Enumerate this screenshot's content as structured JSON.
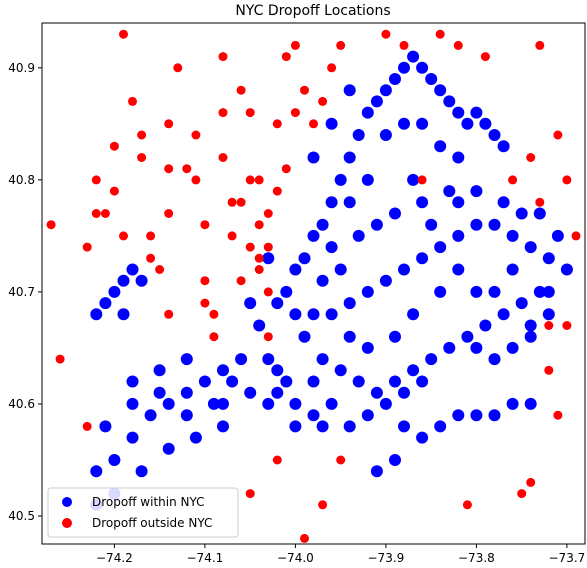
{
  "chart_data": {
    "type": "scatter",
    "title": "NYC Dropoff Locations",
    "xlabel": "",
    "ylabel": "",
    "xlim": [
      -74.28,
      -73.68
    ],
    "ylim": [
      40.475,
      40.94
    ],
    "xticks": [
      -74.2,
      -74.1,
      -74.0,
      -73.9,
      -73.8,
      -73.7
    ],
    "xtick_labels": [
      "−74.2",
      "−74.1",
      "−74.0",
      "−73.9",
      "−73.8",
      "−73.7"
    ],
    "yticks": [
      40.5,
      40.6,
      40.7,
      40.8,
      40.9
    ],
    "ytick_labels": [
      "40.5",
      "40.6",
      "40.7",
      "40.8",
      "40.9"
    ],
    "grid": false,
    "legend_position": "lower-left",
    "series": [
      {
        "name": "Dropoff within NYC",
        "color": "#0000ff",
        "points": [
          [
            -73.99,
            40.73
          ],
          [
            -73.98,
            40.75
          ],
          [
            -73.97,
            40.76
          ],
          [
            -73.96,
            40.78
          ],
          [
            -73.95,
            40.8
          ],
          [
            -73.94,
            40.82
          ],
          [
            -73.93,
            40.84
          ],
          [
            -73.92,
            40.86
          ],
          [
            -73.91,
            40.87
          ],
          [
            -73.9,
            40.88
          ],
          [
            -73.89,
            40.89
          ],
          [
            -73.88,
            40.9
          ],
          [
            -73.87,
            40.91
          ],
          [
            -73.86,
            40.9
          ],
          [
            -73.85,
            40.89
          ],
          [
            -73.84,
            40.88
          ],
          [
            -73.83,
            40.87
          ],
          [
            -73.82,
            40.86
          ],
          [
            -73.81,
            40.85
          ],
          [
            -73.8,
            40.86
          ],
          [
            -73.79,
            40.85
          ],
          [
            -73.78,
            40.84
          ],
          [
            -73.77,
            40.83
          ],
          [
            -73.86,
            40.85
          ],
          [
            -73.88,
            40.85
          ],
          [
            -73.9,
            40.84
          ],
          [
            -73.84,
            40.83
          ],
          [
            -73.82,
            40.82
          ],
          [
            -73.92,
            40.8
          ],
          [
            -73.94,
            40.78
          ],
          [
            -73.96,
            40.74
          ],
          [
            -74.0,
            40.72
          ],
          [
            -74.01,
            40.7
          ],
          [
            -74.0,
            40.68
          ],
          [
            -73.98,
            40.68
          ],
          [
            -73.96,
            40.68
          ],
          [
            -73.94,
            40.69
          ],
          [
            -73.92,
            40.7
          ],
          [
            -73.9,
            40.71
          ],
          [
            -73.88,
            40.72
          ],
          [
            -73.86,
            40.73
          ],
          [
            -73.84,
            40.74
          ],
          [
            -73.82,
            40.75
          ],
          [
            -73.8,
            40.76
          ],
          [
            -73.78,
            40.76
          ],
          [
            -73.76,
            40.75
          ],
          [
            -73.74,
            40.74
          ],
          [
            -73.72,
            40.73
          ],
          [
            -73.71,
            40.75
          ],
          [
            -73.73,
            40.77
          ],
          [
            -73.75,
            40.77
          ],
          [
            -73.77,
            40.78
          ],
          [
            -73.8,
            40.79
          ],
          [
            -73.83,
            40.79
          ],
          [
            -73.86,
            40.78
          ],
          [
            -73.89,
            40.77
          ],
          [
            -73.91,
            40.76
          ],
          [
            -73.93,
            40.75
          ],
          [
            -73.95,
            40.72
          ],
          [
            -73.97,
            40.71
          ],
          [
            -73.99,
            40.66
          ],
          [
            -73.97,
            40.64
          ],
          [
            -73.95,
            40.63
          ],
          [
            -73.93,
            40.62
          ],
          [
            -73.91,
            40.61
          ],
          [
            -73.89,
            40.62
          ],
          [
            -73.87,
            40.63
          ],
          [
            -73.85,
            40.64
          ],
          [
            -73.83,
            40.65
          ],
          [
            -73.81,
            40.66
          ],
          [
            -73.79,
            40.67
          ],
          [
            -73.77,
            40.68
          ],
          [
            -73.75,
            40.69
          ],
          [
            -73.73,
            40.7
          ],
          [
            -73.72,
            40.68
          ],
          [
            -73.74,
            40.66
          ],
          [
            -73.76,
            40.65
          ],
          [
            -73.78,
            40.64
          ],
          [
            -73.8,
            40.65
          ],
          [
            -73.96,
            40.6
          ],
          [
            -73.98,
            40.59
          ],
          [
            -74.0,
            40.6
          ],
          [
            -74.01,
            40.62
          ],
          [
            -74.02,
            40.63
          ],
          [
            -74.03,
            40.64
          ],
          [
            -74.02,
            40.61
          ],
          [
            -74.0,
            40.58
          ],
          [
            -73.97,
            40.58
          ],
          [
            -73.94,
            40.58
          ],
          [
            -73.92,
            40.59
          ],
          [
            -73.9,
            40.6
          ],
          [
            -73.88,
            40.61
          ],
          [
            -73.86,
            40.62
          ],
          [
            -73.82,
            40.59
          ],
          [
            -73.8,
            40.59
          ],
          [
            -73.78,
            40.59
          ],
          [
            -73.76,
            40.6
          ],
          [
            -73.74,
            40.6
          ],
          [
            -73.84,
            40.58
          ],
          [
            -73.86,
            40.57
          ],
          [
            -74.06,
            40.64
          ],
          [
            -74.08,
            40.63
          ],
          [
            -74.1,
            40.62
          ],
          [
            -74.12,
            40.61
          ],
          [
            -74.14,
            40.6
          ],
          [
            -74.16,
            40.59
          ],
          [
            -74.18,
            40.57
          ],
          [
            -74.2,
            40.55
          ],
          [
            -74.22,
            40.54
          ],
          [
            -74.18,
            40.62
          ],
          [
            -74.15,
            40.63
          ],
          [
            -74.12,
            40.64
          ],
          [
            -74.09,
            40.6
          ],
          [
            -74.08,
            40.58
          ],
          [
            -74.11,
            40.57
          ],
          [
            -74.14,
            40.56
          ],
          [
            -74.17,
            40.54
          ],
          [
            -74.2,
            40.52
          ],
          [
            -74.22,
            40.51
          ],
          [
            -74.21,
            40.58
          ],
          [
            -74.18,
            40.6
          ],
          [
            -74.15,
            40.61
          ],
          [
            -74.12,
            40.59
          ],
          [
            -74.21,
            40.69
          ],
          [
            -74.2,
            40.7
          ],
          [
            -74.19,
            40.71
          ],
          [
            -74.18,
            40.72
          ],
          [
            -74.17,
            40.71
          ],
          [
            -74.19,
            40.68
          ],
          [
            -74.22,
            40.68
          ],
          [
            -74.08,
            40.6
          ],
          [
            -74.07,
            40.62
          ],
          [
            -74.05,
            40.61
          ],
          [
            -73.91,
            40.54
          ],
          [
            -73.89,
            40.55
          ],
          [
            -73.88,
            40.58
          ],
          [
            -73.84,
            40.7
          ],
          [
            -73.85,
            40.76
          ],
          [
            -73.87,
            40.8
          ],
          [
            -73.94,
            40.88
          ],
          [
            -73.96,
            40.85
          ],
          [
            -73.98,
            40.82
          ],
          [
            -73.82,
            40.78
          ],
          [
            -73.8,
            40.7
          ],
          [
            -73.76,
            40.72
          ],
          [
            -73.7,
            40.72
          ],
          [
            -73.72,
            40.7
          ],
          [
            -73.74,
            40.67
          ],
          [
            -73.78,
            40.7
          ],
          [
            -73.82,
            40.72
          ],
          [
            -73.87,
            40.68
          ],
          [
            -73.89,
            40.66
          ],
          [
            -73.92,
            40.65
          ],
          [
            -73.94,
            40.66
          ],
          [
            -74.02,
            40.69
          ],
          [
            -74.03,
            40.73
          ],
          [
            -74.04,
            40.67
          ],
          [
            -74.05,
            40.69
          ],
          [
            -74.03,
            40.6
          ],
          [
            -73.98,
            40.62
          ]
        ]
      },
      {
        "name": "Dropoff outside NYC",
        "color": "#ff0000",
        "points": [
          [
            -74.27,
            40.76
          ],
          [
            -74.26,
            40.64
          ],
          [
            -74.23,
            40.58
          ],
          [
            -74.23,
            40.74
          ],
          [
            -74.22,
            40.77
          ],
          [
            -74.22,
            40.8
          ],
          [
            -74.21,
            40.77
          ],
          [
            -74.2,
            40.83
          ],
          [
            -74.2,
            40.79
          ],
          [
            -74.19,
            40.93
          ],
          [
            -74.18,
            40.87
          ],
          [
            -74.17,
            40.82
          ],
          [
            -74.17,
            40.84
          ],
          [
            -74.16,
            40.75
          ],
          [
            -74.16,
            40.73
          ],
          [
            -74.15,
            40.72
          ],
          [
            -74.14,
            40.68
          ],
          [
            -74.14,
            40.77
          ],
          [
            -74.13,
            40.9
          ],
          [
            -74.12,
            40.81
          ],
          [
            -74.11,
            40.8
          ],
          [
            -74.1,
            40.71
          ],
          [
            -74.1,
            40.69
          ],
          [
            -74.09,
            40.68
          ],
          [
            -74.09,
            40.66
          ],
          [
            -74.08,
            40.91
          ],
          [
            -74.08,
            40.82
          ],
          [
            -74.07,
            40.78
          ],
          [
            -74.07,
            40.75
          ],
          [
            -74.06,
            40.71
          ],
          [
            -74.06,
            40.88
          ],
          [
            -74.05,
            40.86
          ],
          [
            -74.05,
            40.8
          ],
          [
            -74.04,
            40.76
          ],
          [
            -74.04,
            40.73
          ],
          [
            -74.04,
            40.72
          ],
          [
            -74.03,
            40.74
          ],
          [
            -74.03,
            40.7
          ],
          [
            -74.03,
            40.77
          ],
          [
            -74.02,
            40.79
          ],
          [
            -74.02,
            40.85
          ],
          [
            -74.01,
            40.91
          ],
          [
            -74.01,
            40.81
          ],
          [
            -74.0,
            40.86
          ],
          [
            -74.0,
            40.92
          ],
          [
            -73.99,
            40.88
          ],
          [
            -73.98,
            40.85
          ],
          [
            -73.97,
            40.87
          ],
          [
            -73.96,
            40.9
          ],
          [
            -73.95,
            40.92
          ],
          [
            -74.04,
            40.8
          ],
          [
            -74.08,
            40.86
          ],
          [
            -74.11,
            40.84
          ],
          [
            -74.14,
            40.85
          ],
          [
            -74.05,
            40.52
          ],
          [
            -74.02,
            40.55
          ],
          [
            -73.99,
            40.48
          ],
          [
            -73.97,
            40.51
          ],
          [
            -73.95,
            40.55
          ],
          [
            -73.86,
            40.8
          ],
          [
            -73.82,
            40.92
          ],
          [
            -73.79,
            40.91
          ],
          [
            -73.76,
            40.8
          ],
          [
            -73.74,
            40.82
          ],
          [
            -73.73,
            40.78
          ],
          [
            -73.71,
            40.84
          ],
          [
            -73.7,
            40.8
          ],
          [
            -73.69,
            40.75
          ],
          [
            -73.7,
            40.67
          ],
          [
            -73.71,
            40.59
          ],
          [
            -73.72,
            40.67
          ],
          [
            -73.74,
            40.53
          ],
          [
            -73.75,
            40.52
          ],
          [
            -73.72,
            40.63
          ],
          [
            -73.81,
            40.51
          ],
          [
            -73.84,
            40.93
          ],
          [
            -73.88,
            40.92
          ],
          [
            -73.9,
            40.93
          ],
          [
            -73.73,
            40.92
          ],
          [
            -74.03,
            40.66
          ],
          [
            -74.1,
            40.76
          ],
          [
            -74.14,
            40.81
          ],
          [
            -74.19,
            40.75
          ],
          [
            -74.05,
            40.74
          ],
          [
            -74.06,
            40.78
          ]
        ]
      }
    ]
  }
}
